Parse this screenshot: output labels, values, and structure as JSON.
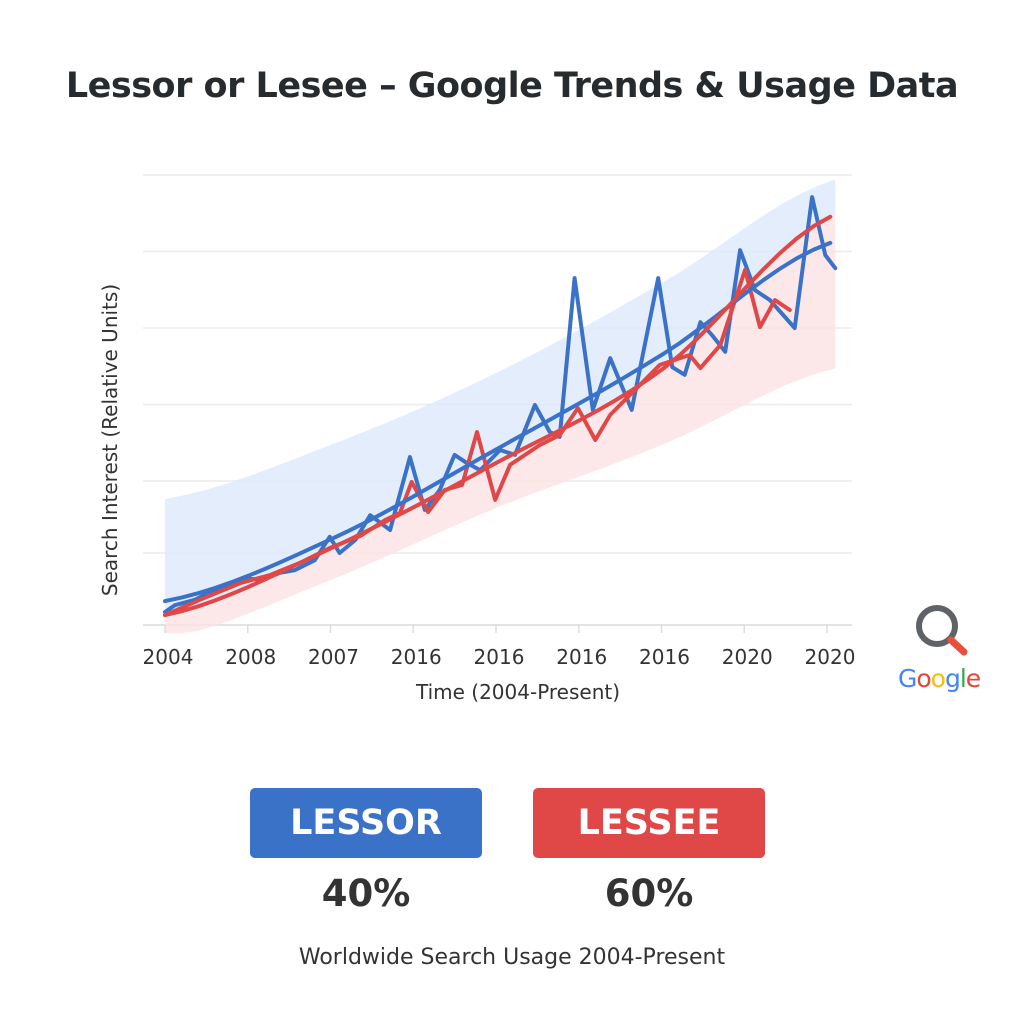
{
  "title": "Lessor or Lesee – Google Trends & Usage Data",
  "colors": {
    "lessor": "#3a72c8",
    "lessee": "#e04848",
    "lessor_band": "#dce8fb",
    "lessee_band": "#fbe1e3"
  },
  "chart_data": {
    "type": "line",
    "title": "Lessor or Lesee – Google Trends & Usage Data",
    "xlabel": "Time (2004-Present)",
    "ylabel": "Search Interest (Relative Units)",
    "x_tick_labels": [
      "2004",
      "2008",
      "2007",
      "2016",
      "2016",
      "2016",
      "2016",
      "2020",
      "2020"
    ],
    "xlim": [
      0,
      8.2
    ],
    "ylim": [
      0,
      100
    ],
    "grid": true,
    "series": [
      {
        "name": "LESSOR",
        "kind": "actual",
        "points": [
          [
            0,
            2.9
          ],
          [
            0.12,
            4.4
          ],
          [
            0.36,
            5.6
          ],
          [
            0.6,
            7.8
          ],
          [
            0.97,
            10.4
          ],
          [
            1.17,
            10.0
          ],
          [
            1.39,
            11.6
          ],
          [
            1.57,
            12.2
          ],
          [
            1.81,
            14.4
          ],
          [
            1.99,
            19.6
          ],
          [
            2.11,
            16.0
          ],
          [
            2.3,
            18.9
          ],
          [
            2.48,
            24.4
          ],
          [
            2.72,
            21.1
          ],
          [
            2.96,
            37.3
          ],
          [
            3.14,
            25.6
          ],
          [
            3.32,
            30.0
          ],
          [
            3.5,
            37.8
          ],
          [
            3.63,
            36.2
          ],
          [
            3.81,
            34.4
          ],
          [
            4.05,
            38.9
          ],
          [
            4.23,
            37.8
          ],
          [
            4.47,
            48.9
          ],
          [
            4.65,
            42.9
          ],
          [
            4.77,
            41.8
          ],
          [
            4.95,
            77.1
          ],
          [
            5.17,
            47.8
          ],
          [
            5.38,
            59.3
          ],
          [
            5.64,
            47.8
          ],
          [
            5.96,
            77.1
          ],
          [
            6.13,
            57.3
          ],
          [
            6.28,
            55.6
          ],
          [
            6.47,
            67.3
          ],
          [
            6.62,
            64.2
          ],
          [
            6.77,
            60.7
          ],
          [
            6.95,
            83.3
          ],
          [
            7.13,
            74.4
          ],
          [
            7.31,
            72.2
          ],
          [
            7.61,
            66.0
          ],
          [
            7.82,
            95.1
          ],
          [
            7.98,
            82.2
          ],
          [
            8.1,
            79.3
          ]
        ]
      },
      {
        "name": "LESSEE",
        "kind": "actual",
        "points": [
          [
            0,
            2.2
          ],
          [
            0.42,
            5.6
          ],
          [
            0.91,
            9.3
          ],
          [
            1.27,
            11.1
          ],
          [
            1.63,
            13.8
          ],
          [
            1.99,
            17.1
          ],
          [
            2.36,
            19.8
          ],
          [
            2.66,
            23.3
          ],
          [
            2.84,
            24.9
          ],
          [
            2.98,
            31.8
          ],
          [
            3.18,
            25.1
          ],
          [
            3.38,
            30.0
          ],
          [
            3.59,
            31.1
          ],
          [
            3.77,
            42.9
          ],
          [
            3.99,
            27.8
          ],
          [
            4.17,
            35.6
          ],
          [
            4.53,
            40.0
          ],
          [
            4.77,
            42.2
          ],
          [
            4.99,
            48.2
          ],
          [
            5.2,
            41.1
          ],
          [
            5.38,
            46.7
          ],
          [
            5.98,
            57.8
          ],
          [
            6.34,
            60.0
          ],
          [
            6.47,
            57.1
          ],
          [
            6.71,
            62.2
          ],
          [
            7.01,
            78.9
          ],
          [
            7.19,
            66.2
          ],
          [
            7.37,
            72.2
          ],
          [
            7.55,
            70.0
          ]
        ]
      },
      {
        "name": "LESSOR",
        "kind": "trend",
        "points": [
          [
            0,
            5.3
          ],
          [
            2,
            19
          ],
          [
            4,
            39
          ],
          [
            6,
            60
          ],
          [
            8.04,
            84.9
          ]
        ]
      },
      {
        "name": "LESSEE",
        "kind": "trend",
        "points": [
          [
            0,
            2.2
          ],
          [
            2,
            17
          ],
          [
            4,
            36
          ],
          [
            6,
            56.7
          ],
          [
            8.04,
            90.7
          ]
        ]
      }
    ],
    "bands": [
      {
        "name": "LESSOR",
        "upper": [
          [
            0,
            28
          ],
          [
            2,
            40
          ],
          [
            4,
            56
          ],
          [
            6,
            76
          ],
          [
            8.1,
            99
          ]
        ],
        "lower": [
          [
            0,
            2.2
          ],
          [
            2,
            17
          ],
          [
            4,
            36
          ],
          [
            6,
            56.7
          ],
          [
            8.1,
            91
          ]
        ]
      },
      {
        "name": "LESSEE",
        "upper": [
          [
            0,
            2.2
          ],
          [
            2,
            17
          ],
          [
            4,
            36
          ],
          [
            6,
            56.7
          ],
          [
            8.1,
            91
          ]
        ],
        "lower": [
          [
            0,
            -3
          ],
          [
            2,
            10
          ],
          [
            4,
            26
          ],
          [
            6,
            40
          ],
          [
            8.1,
            57
          ]
        ]
      }
    ]
  },
  "legend": [
    {
      "label": "LESSOR",
      "percent": "40%",
      "share": 40
    },
    {
      "label": "LESSEE",
      "percent": "60%",
      "share": 60
    }
  ],
  "caption": "Worldwide Search Usage 2004-Present",
  "logo": {
    "text": "Google",
    "icon": "magnifier-icon"
  }
}
